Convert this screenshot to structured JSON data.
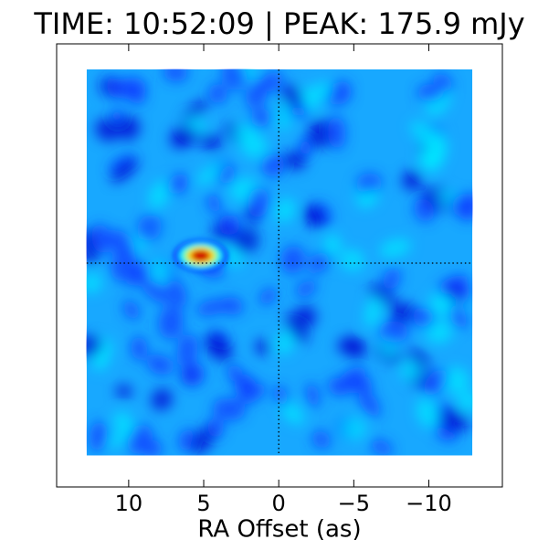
{
  "chart_data": {
    "type": "image",
    "title": "TIME: 10:52:09 | PEAK:  175.9 mJy",
    "xlabel": "RA Offset (as)",
    "xlim": [
      14.8,
      -14.9
    ],
    "ylim": [
      -14.9,
      14.6
    ],
    "xticks": [
      10,
      5,
      0,
      {
        "value": -5,
        "label": "−5"
      },
      {
        "value": -10,
        "label": "−10"
      }
    ],
    "extent": [
      12.8,
      -12.9,
      -12.8,
      12.9
    ],
    "crosshair": [
      0,
      0
    ],
    "peak": {
      "x": 5.2,
      "y": 0.5
    },
    "colormap": [
      "#0000d0",
      "#0a3cff",
      "#18a8ff",
      "#00e8ff",
      "#80ff80",
      "#ffd000",
      "#d00000"
    ]
  }
}
